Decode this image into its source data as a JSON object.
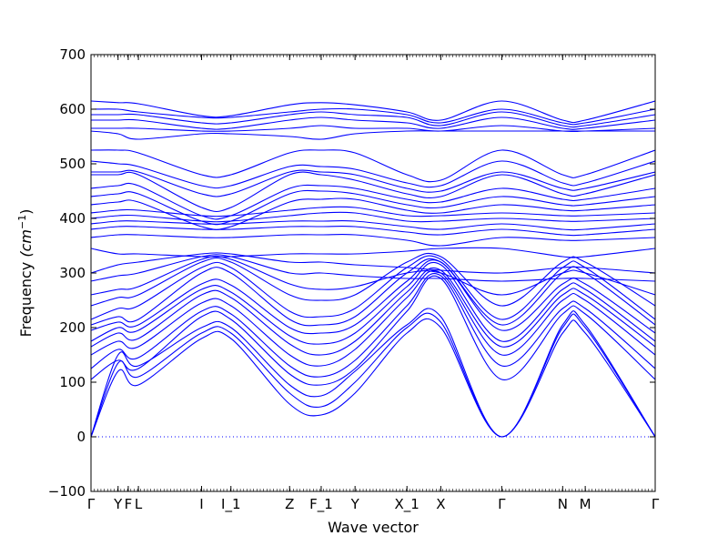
{
  "chart_data": {
    "type": "line",
    "xlabel": "Wave vector",
    "ylabel": "Frequency",
    "ylabel_unit": "(cm",
    "ylabel_unit_exp": "−1",
    "ylabel_unit_close": ")",
    "ylim": [
      -100,
      700
    ],
    "yticks": [
      -100,
      0,
      100,
      200,
      300,
      400,
      500,
      600,
      700
    ],
    "x_range": [
      0,
      25
    ],
    "kpoints": [
      {
        "label": "Γ",
        "x": 0
      },
      {
        "label": "Y",
        "x": 1.2
      },
      {
        "label": "F",
        "x": 1.65
      },
      {
        "label": "L",
        "x": 2.1
      },
      {
        "label": "I",
        "x": 4.9
      },
      {
        "label": "I_1",
        "x": 6.2
      },
      {
        "label": "Z",
        "x": 8.8
      },
      {
        "label": "F_1",
        "x": 10.2
      },
      {
        "label": "Y",
        "x": 11.7
      },
      {
        "label": "X_1",
        "x": 14.0
      },
      {
        "label": "X",
        "x": 15.5
      },
      {
        "label": "Γ",
        "x": 18.2
      },
      {
        "label": "N",
        "x": 20.9
      },
      {
        "label": "M",
        "x": 21.9
      },
      {
        "label": "Γ",
        "x": 25
      }
    ],
    "line_color": "#0000ff",
    "zero_line": {
      "y": 0,
      "style": "dotted",
      "color": "#0000ff"
    },
    "series": [
      {
        "x": [
          0,
          1.2,
          2.1,
          4.9,
          6.2,
          8.8,
          10.2,
          11.7,
          14.0,
          15.5,
          18.2,
          20.9,
          21.9,
          25
        ],
        "y": [
          0,
          120,
          95,
          180,
          180,
          60,
          40,
          80,
          190,
          200,
          0,
          190,
          190,
          0
        ]
      },
      {
        "x": [
          0,
          1.2,
          2.1,
          4.9,
          6.2,
          8.8,
          10.2,
          11.7,
          14.0,
          15.5,
          18.2,
          20.9,
          21.9,
          25
        ],
        "y": [
          0,
          135,
          110,
          190,
          190,
          80,
          55,
          100,
          200,
          210,
          0,
          200,
          200,
          0
        ]
      },
      {
        "x": [
          0,
          1.2,
          2.1,
          4.9,
          6.2,
          8.8,
          10.2,
          11.7,
          14.0,
          15.5,
          18.2,
          20.9,
          21.9,
          25
        ],
        "y": [
          0,
          150,
          130,
          200,
          200,
          95,
          75,
          120,
          205,
          220,
          0,
          205,
          205,
          0
        ]
      },
      {
        "x": [
          0,
          1.2,
          2.1,
          4.9,
          6.2,
          8.8,
          10.2,
          11.7,
          14.0,
          15.5,
          18.2,
          20.9,
          21.9,
          25
        ],
        "y": [
          105,
          140,
          125,
          220,
          215,
          115,
          95,
          125,
          230,
          290,
          105,
          225,
          225,
          105
        ]
      },
      {
        "x": [
          0,
          1.2,
          2.1,
          4.9,
          6.2,
          8.8,
          10.2,
          11.7,
          14.0,
          15.5,
          18.2,
          20.9,
          21.9,
          25
        ],
        "y": [
          125,
          160,
          145,
          230,
          225,
          130,
          110,
          140,
          240,
          295,
          130,
          235,
          235,
          125
        ]
      },
      {
        "x": [
          0,
          1.2,
          2.1,
          4.9,
          6.2,
          8.8,
          10.2,
          11.7,
          14.0,
          15.5,
          18.2,
          20.9,
          21.9,
          25
        ],
        "y": [
          150,
          175,
          165,
          245,
          240,
          150,
          130,
          160,
          255,
          300,
          150,
          250,
          250,
          150
        ]
      },
      {
        "x": [
          0,
          1.2,
          2.1,
          4.9,
          6.2,
          8.8,
          10.2,
          11.7,
          14.0,
          15.5,
          18.2,
          20.9,
          21.9,
          25
        ],
        "y": [
          165,
          190,
          180,
          260,
          255,
          170,
          150,
          175,
          265,
          305,
          165,
          260,
          260,
          165
        ]
      },
      {
        "x": [
          0,
          1.2,
          2.1,
          4.9,
          6.2,
          8.8,
          10.2,
          11.7,
          14.0,
          15.5,
          18.2,
          20.9,
          21.9,
          25
        ],
        "y": [
          175,
          200,
          195,
          270,
          265,
          185,
          170,
          190,
          275,
          315,
          175,
          270,
          270,
          175
        ]
      },
      {
        "x": [
          0,
          1.2,
          2.1,
          4.9,
          6.2,
          8.8,
          10.2,
          11.7,
          14.0,
          15.5,
          18.2,
          20.9,
          21.9,
          25
        ],
        "y": [
          195,
          210,
          205,
          280,
          278,
          200,
          190,
          205,
          285,
          320,
          195,
          280,
          280,
          190
        ]
      },
      {
        "x": [
          0,
          1.2,
          2.1,
          4.9,
          6.2,
          8.8,
          10.2,
          11.7,
          14.0,
          15.5,
          18.2,
          20.9,
          21.9,
          25
        ],
        "y": [
          205,
          220,
          215,
          300,
          300,
          215,
          205,
          220,
          300,
          320,
          205,
          300,
          300,
          205
        ]
      },
      {
        "x": [
          0,
          1.2,
          2.1,
          4.9,
          6.2,
          8.8,
          10.2,
          11.7,
          14.0,
          15.5,
          18.2,
          20.9,
          21.9,
          25
        ],
        "y": [
          215,
          235,
          240,
          310,
          310,
          230,
          220,
          235,
          310,
          325,
          215,
          310,
          310,
          215
        ]
      },
      {
        "x": [
          0,
          1.2,
          2.1,
          4.9,
          6.2,
          8.8,
          10.2,
          11.7,
          14.0,
          15.5,
          18.2,
          20.9,
          21.9,
          25
        ],
        "y": [
          240,
          255,
          260,
          320,
          320,
          260,
          250,
          260,
          320,
          330,
          240,
          320,
          320,
          240
        ]
      },
      {
        "x": [
          0,
          1.2,
          2.1,
          4.9,
          6.2,
          8.8,
          10.2,
          11.7,
          14.0,
          15.5,
          18.2,
          20.9,
          21.9,
          25
        ],
        "y": [
          260,
          270,
          275,
          325,
          325,
          280,
          270,
          275,
          300,
          300,
          260,
          300,
          300,
          260
        ]
      },
      {
        "x": [
          0,
          1.2,
          2.1,
          4.9,
          6.2,
          8.8,
          10.2,
          11.7,
          14.0,
          15.5,
          18.2,
          20.9,
          21.9,
          25
        ],
        "y": [
          285,
          295,
          300,
          330,
          330,
          300,
          300,
          295,
          290,
          290,
          285,
          290,
          290,
          285
        ]
      },
      {
        "x": [
          0,
          1.2,
          2.1,
          4.9,
          6.2,
          8.8,
          10.2,
          11.7,
          14.0,
          15.5,
          18.2,
          20.9,
          21.9,
          25
        ],
        "y": [
          300,
          315,
          320,
          335,
          335,
          320,
          320,
          315,
          310,
          305,
          300,
          310,
          310,
          300
        ]
      },
      {
        "x": [
          0,
          1.2,
          2.1,
          4.9,
          6.2,
          8.8,
          10.2,
          11.7,
          14.0,
          15.5,
          18.2,
          20.9,
          21.9,
          25
        ],
        "y": [
          345,
          335,
          335,
          330,
          330,
          335,
          335,
          335,
          340,
          345,
          345,
          330,
          330,
          345
        ]
      },
      {
        "x": [
          0,
          1.2,
          2.1,
          4.9,
          6.2,
          8.8,
          10.2,
          11.7,
          14.0,
          15.5,
          18.2,
          20.9,
          21.9,
          25
        ],
        "y": [
          365,
          370,
          370,
          365,
          365,
          370,
          370,
          370,
          360,
          350,
          365,
          360,
          360,
          365
        ]
      },
      {
        "x": [
          0,
          1.2,
          2.1,
          4.9,
          6.2,
          8.8,
          10.2,
          11.7,
          14.0,
          15.5,
          18.2,
          20.9,
          21.9,
          25
        ],
        "y": [
          380,
          385,
          385,
          380,
          380,
          385,
          385,
          385,
          375,
          370,
          380,
          370,
          370,
          380
        ]
      },
      {
        "x": [
          0,
          1.2,
          2.1,
          4.9,
          6.2,
          8.8,
          10.2,
          11.7,
          14.0,
          15.5,
          18.2,
          20.9,
          21.9,
          25
        ],
        "y": [
          390,
          395,
          395,
          390,
          390,
          395,
          395,
          395,
          385,
          380,
          390,
          380,
          380,
          390
        ]
      },
      {
        "x": [
          0,
          1.2,
          2.1,
          4.9,
          6.2,
          8.8,
          10.2,
          11.7,
          14.0,
          15.5,
          18.2,
          20.9,
          21.9,
          25
        ],
        "y": [
          400,
          405,
          405,
          395,
          395,
          405,
          410,
          410,
          395,
          395,
          400,
          395,
          395,
          400
        ]
      },
      {
        "x": [
          0,
          1.2,
          2.1,
          4.9,
          6.2,
          8.8,
          10.2,
          11.7,
          14.0,
          15.5,
          18.2,
          20.9,
          21.9,
          25
        ],
        "y": [
          410,
          415,
          415,
          405,
          405,
          415,
          420,
          420,
          405,
          405,
          410,
          405,
          405,
          410
        ]
      },
      {
        "x": [
          0,
          1.2,
          2.1,
          4.9,
          6.2,
          8.8,
          10.2,
          11.7,
          14.0,
          15.5,
          18.2,
          20.9,
          21.9,
          25
        ],
        "y": [
          425,
          430,
          430,
          385,
          385,
          430,
          435,
          435,
          415,
          410,
          425,
          415,
          415,
          425
        ]
      },
      {
        "x": [
          0,
          1.2,
          2.1,
          4.9,
          6.2,
          8.8,
          10.2,
          11.7,
          14.0,
          15.5,
          18.2,
          20.9,
          21.9,
          25
        ],
        "y": [
          440,
          445,
          445,
          395,
          395,
          445,
          450,
          445,
          425,
          420,
          440,
          425,
          425,
          440
        ]
      },
      {
        "x": [
          0,
          1.2,
          2.1,
          4.9,
          6.2,
          8.8,
          10.2,
          11.7,
          14.0,
          15.5,
          18.2,
          20.9,
          21.9,
          25
        ],
        "y": [
          455,
          460,
          460,
          405,
          405,
          455,
          460,
          455,
          435,
          430,
          455,
          435,
          435,
          455
        ]
      },
      {
        "x": [
          0,
          1.2,
          2.1,
          4.9,
          6.2,
          8.8,
          10.2,
          11.7,
          14.0,
          15.5,
          18.2,
          20.9,
          21.9,
          25
        ],
        "y": [
          480,
          480,
          480,
          420,
          420,
          480,
          480,
          470,
          445,
          440,
          480,
          445,
          445,
          480
        ]
      },
      {
        "x": [
          0,
          1.2,
          2.1,
          4.9,
          6.2,
          8.8,
          10.2,
          11.7,
          14.0,
          15.5,
          18.2,
          20.9,
          21.9,
          25
        ],
        "y": [
          485,
          485,
          485,
          445,
          445,
          485,
          485,
          480,
          455,
          450,
          485,
          455,
          455,
          485
        ]
      },
      {
        "x": [
          0,
          1.2,
          2.1,
          4.9,
          6.2,
          8.8,
          10.2,
          11.7,
          14.0,
          15.5,
          18.2,
          20.9,
          21.9,
          25
        ],
        "y": [
          505,
          500,
          495,
          460,
          460,
          495,
          495,
          490,
          465,
          460,
          505,
          465,
          465,
          505
        ]
      },
      {
        "x": [
          0,
          1.2,
          2.1,
          4.9,
          6.2,
          8.8,
          10.2,
          11.7,
          14.0,
          15.5,
          18.2,
          20.9,
          21.9,
          25
        ],
        "y": [
          525,
          525,
          520,
          480,
          480,
          520,
          525,
          520,
          480,
          470,
          525,
          480,
          480,
          525
        ]
      },
      {
        "x": [
          0,
          1.2,
          2.1,
          4.9,
          6.2,
          8.8,
          10.2,
          11.7,
          14.0,
          15.5,
          18.2,
          20.9,
          21.9,
          25
        ],
        "y": [
          560,
          555,
          545,
          555,
          555,
          550,
          545,
          555,
          560,
          560,
          560,
          560,
          560,
          560
        ]
      },
      {
        "x": [
          0,
          1.2,
          2.1,
          4.9,
          6.2,
          8.8,
          10.2,
          11.7,
          14.0,
          15.5,
          18.2,
          20.9,
          21.9,
          25
        ],
        "y": [
          565,
          565,
          565,
          560,
          560,
          565,
          570,
          565,
          565,
          560,
          570,
          560,
          560,
          565
        ]
      },
      {
        "x": [
          0,
          1.2,
          2.1,
          4.9,
          6.2,
          8.8,
          10.2,
          11.7,
          14.0,
          15.5,
          18.2,
          20.9,
          21.9,
          25
        ],
        "y": [
          580,
          580,
          580,
          565,
          565,
          580,
          585,
          580,
          575,
          565,
          585,
          565,
          565,
          580
        ]
      },
      {
        "x": [
          0,
          1.2,
          2.1,
          4.9,
          6.2,
          8.8,
          10.2,
          11.7,
          14.0,
          15.5,
          18.2,
          20.9,
          21.9,
          25
        ],
        "y": [
          590,
          590,
          590,
          575,
          575,
          590,
          595,
          590,
          585,
          570,
          595,
          570,
          570,
          590
        ]
      },
      {
        "x": [
          0,
          1.2,
          2.1,
          4.9,
          6.2,
          8.8,
          10.2,
          11.7,
          14.0,
          15.5,
          18.2,
          20.9,
          21.9,
          25
        ],
        "y": [
          600,
          600,
          595,
          585,
          585,
          595,
          600,
          600,
          590,
          575,
          600,
          575,
          575,
          600
        ]
      },
      {
        "x": [
          0,
          1.2,
          2.1,
          4.9,
          6.2,
          8.8,
          10.2,
          11.7,
          14.0,
          15.5,
          18.2,
          20.9,
          21.9,
          25
        ],
        "y": [
          615,
          612,
          610,
          588,
          588,
          608,
          612,
          608,
          595,
          580,
          615,
          580,
          580,
          615
        ]
      }
    ]
  }
}
